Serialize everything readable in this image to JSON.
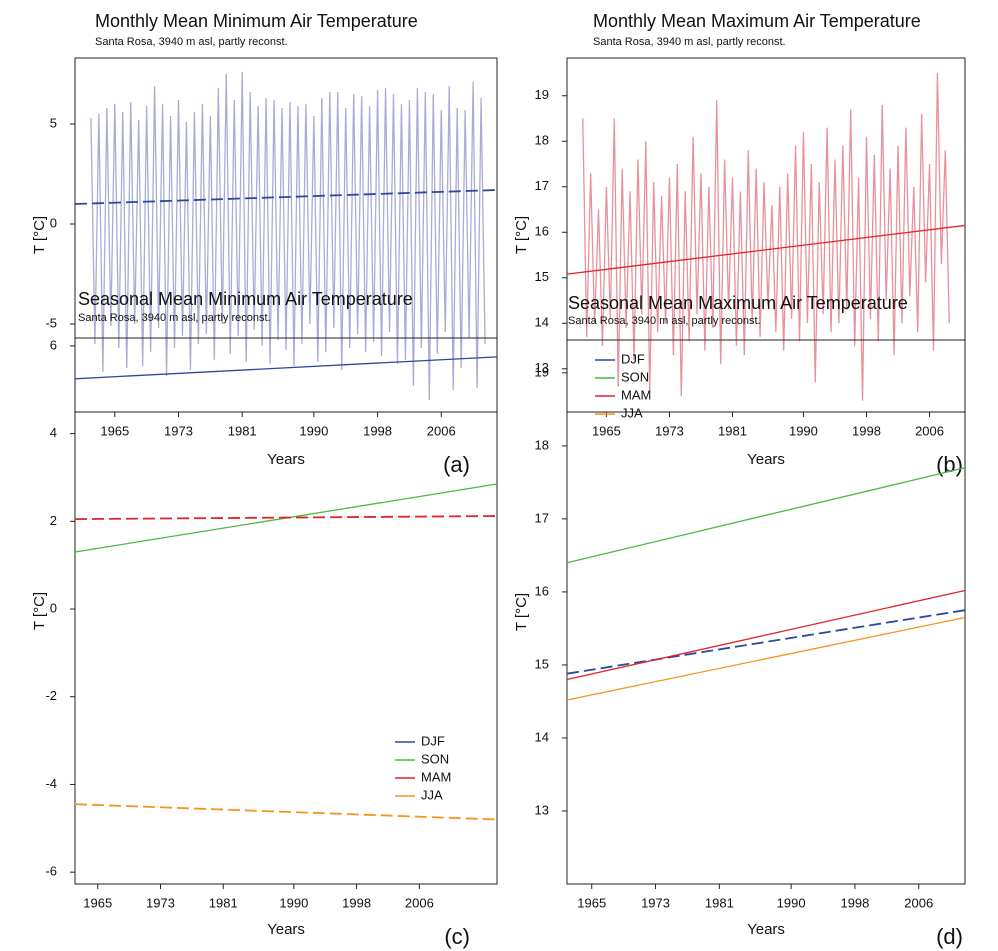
{
  "chart_data": [
    {
      "type": "line",
      "title": "Monthly Mean Minimum Air Temperature",
      "subtitle": "Santa Rosa, 3940 m asl, partly reconst.",
      "xlabel": "Years",
      "ylabel": "T [°C]",
      "panel_label": "(a)",
      "xlim": [
        1960,
        2013
      ],
      "ylim": [
        -9.4,
        8.3
      ],
      "xticks": [
        1965,
        1973,
        1981,
        1990,
        1998,
        2006
      ],
      "yticks": [
        -5,
        0,
        5
      ],
      "x": [
        1962,
        1962.5,
        1963,
        1963.5,
        1964,
        1964.5,
        1965,
        1965.5,
        1966,
        1966.5,
        1967,
        1967.5,
        1968,
        1968.5,
        1969,
        1969.5,
        1970,
        1970.5,
        1971,
        1971.5,
        1972,
        1972.5,
        1973,
        1973.5,
        1974,
        1974.5,
        1975,
        1975.5,
        1976,
        1976.5,
        1977,
        1977.5,
        1978,
        1978.5,
        1979,
        1979.5,
        1980,
        1980.5,
        1981,
        1981.5,
        1982,
        1982.5,
        1983,
        1983.5,
        1984,
        1984.5,
        1985,
        1985.5,
        1986,
        1986.5,
        1987,
        1987.5,
        1988,
        1988.5,
        1989,
        1989.5,
        1990,
        1990.5,
        1991,
        1991.5,
        1992,
        1992.5,
        1993,
        1993.5,
        1994,
        1994.5,
        1995,
        1995.5,
        1996,
        1996.5,
        1997,
        1997.5,
        1998,
        1998.5,
        1999,
        1999.5,
        2000,
        2000.5,
        2001,
        2001.5,
        2002,
        2002.5,
        2003,
        2003.5,
        2004,
        2004.5,
        2005,
        2005.5,
        2006,
        2006.5,
        2007,
        2007.5,
        2008,
        2008.5,
        2009,
        2009.5,
        2010,
        2010.5,
        2011,
        2011.5
      ],
      "series": [
        {
          "color": "#aaabd6",
          "values": [
            5.3,
            -6.0,
            5.5,
            -7.4,
            5.8,
            -5.1,
            6.0,
            -6.2,
            5.6,
            -7.2,
            6.1,
            -5.0,
            5.2,
            -7.1,
            5.9,
            -6.4,
            6.9,
            -5.2,
            6.0,
            -7.6,
            5.4,
            -6.2,
            6.2,
            -5.6,
            5.1,
            -7.3,
            5.6,
            -6.0,
            6.0,
            -5.5,
            5.4,
            -6.8,
            6.8,
            -5.0,
            7.5,
            -6.5,
            6.2,
            -5.6,
            7.6,
            -6.9,
            6.6,
            -5.3,
            5.9,
            -6.1,
            6.3,
            -7.0,
            6.2,
            -5.8,
            5.8,
            -6.3,
            6.1,
            -7.1,
            5.9,
            -6.0,
            6.0,
            -5.0,
            5.4,
            -6.9,
            6.3,
            -6.4,
            6.6,
            -5.2,
            6.6,
            -7.3,
            5.8,
            -6.2,
            6.5,
            -5.5,
            6.4,
            -6.4,
            5.9,
            -5.9,
            6.7,
            -6.6,
            6.8,
            -5.4,
            6.5,
            -7.0,
            6.0,
            -6.8,
            6.2,
            -8.1,
            6.8,
            -6.2,
            6.6,
            -8.8,
            6.5,
            -6.5,
            5.7,
            -5.4,
            6.9,
            -8.3,
            5.8,
            -7.2,
            5.7,
            -5.7,
            7.1,
            -8.2,
            6.3,
            -6.0
          ]
        },
        {
          "color": "#2b4a9a",
          "dashed": true,
          "x": [
            1960,
            2013
          ],
          "values": [
            1.0,
            1.7
          ]
        }
      ]
    },
    {
      "type": "line",
      "title": "Monthly Mean Maximum Air Temperature",
      "subtitle": "Santa Rosa, 3940 m asl, partly reconst.",
      "xlabel": "Years",
      "ylabel": "T [°C]",
      "panel_label": "(b)",
      "xlim": [
        1960,
        2010.5
      ],
      "ylim": [
        12.05,
        19.83
      ],
      "xticks": [
        1965,
        1973,
        1981,
        1990,
        1998,
        2006
      ],
      "yticks": [
        13,
        14,
        15,
        16,
        17,
        18,
        19
      ],
      "x": [
        1962,
        1962.5,
        1963,
        1963.5,
        1964,
        1964.5,
        1965,
        1965.5,
        1966,
        1966.5,
        1967,
        1967.5,
        1968,
        1968.5,
        1969,
        1969.5,
        1970,
        1970.5,
        1971,
        1971.5,
        1972,
        1972.5,
        1973,
        1973.5,
        1974,
        1974.5,
        1975,
        1975.5,
        1976,
        1976.5,
        1977,
        1977.5,
        1978,
        1978.5,
        1979,
        1979.5,
        1980,
        1980.5,
        1981,
        1981.5,
        1982,
        1982.5,
        1983,
        1983.5,
        1984,
        1984.5,
        1985,
        1985.5,
        1986,
        1986.5,
        1987,
        1987.5,
        1988,
        1988.5,
        1989,
        1989.5,
        1990,
        1990.5,
        1991,
        1991.5,
        1992,
        1992.5,
        1993,
        1993.5,
        1994,
        1994.5,
        1995,
        1995.5,
        1996,
        1996.5,
        1997,
        1997.5,
        1998,
        1998.5,
        1999,
        1999.5,
        2000,
        2000.5,
        2001,
        2001.5,
        2002,
        2002.5,
        2003,
        2003.5,
        2004,
        2004.5,
        2005,
        2005.5,
        2006,
        2006.5,
        2007,
        2007.5,
        2008,
        2008.5
      ],
      "series": [
        {
          "color": "#e8919d",
          "values": [
            18.5,
            13.7,
            17.3,
            14.0,
            16.5,
            13.5,
            17.0,
            14.1,
            18.5,
            12.6,
            17.4,
            13.9,
            16.9,
            13.2,
            17.6,
            14.2,
            18.0,
            12.5,
            17.1,
            13.8,
            16.8,
            14.0,
            17.2,
            13.3,
            17.5,
            12.4,
            16.9,
            13.6,
            18.1,
            14.2,
            17.3,
            13.4,
            17.0,
            13.9,
            18.9,
            13.1,
            17.6,
            14.3,
            17.2,
            13.5,
            16.9,
            13.3,
            17.8,
            14.0,
            17.4,
            13.7,
            17.1,
            14.4,
            16.6,
            13.8,
            17.0,
            13.4,
            17.3,
            14.1,
            17.9,
            13.6,
            18.2,
            14.0,
            17.5,
            12.7,
            17.1,
            14.2,
            18.3,
            13.8,
            17.6,
            14.0,
            17.9,
            14.3,
            18.7,
            13.5,
            17.2,
            12.3,
            18.1,
            14.1,
            17.7,
            13.6,
            18.8,
            14.5,
            17.4,
            13.3,
            17.9,
            14.0,
            18.3,
            14.6,
            17.0,
            13.8,
            18.6,
            14.9,
            17.5,
            13.4,
            19.5,
            15.3,
            17.8,
            14.0
          ]
        },
        {
          "color": "#e0242a",
          "x": [
            1960,
            2010.5
          ],
          "values": [
            15.08,
            16.15
          ]
        }
      ]
    },
    {
      "type": "line",
      "title": "Seasonal Mean Minimum Air Temperature",
      "subtitle": "Santa Rosa, 3940 m asl, partly reconst.",
      "xlabel": "Years",
      "ylabel": "T [°C]",
      "panel_label": "(c)",
      "xlim": [
        1962.1,
        2015.9
      ],
      "ylim": [
        -6.27,
        6.18
      ],
      "xticks": [
        1965,
        1973,
        1981,
        1990,
        1998,
        2006
      ],
      "yticks": [
        -6,
        -4,
        -2,
        0,
        2,
        4,
        6
      ],
      "legend": "lower right",
      "x": [
        1962.1,
        2015.9
      ],
      "series": [
        {
          "name": "DJF",
          "color": "#2b4a9a",
          "values": [
            5.25,
            5.75
          ]
        },
        {
          "name": "SON",
          "color": "#4cb848",
          "values": [
            1.3,
            2.85
          ]
        },
        {
          "name": "MAM",
          "color": "#e0242a",
          "dashed": true,
          "values": [
            2.05,
            2.12
          ]
        },
        {
          "name": "JJA",
          "color": "#f7941d",
          "dashed": true,
          "values": [
            -4.45,
            -4.8
          ]
        }
      ]
    },
    {
      "type": "line",
      "title": "Seasonal Mean Maximum Air Temperature",
      "subtitle": "Santa Rosa, 3940 m asl, partly reconst.",
      "xlabel": "Years",
      "ylabel": "T [°C]",
      "panel_label": "(d)",
      "xlim": [
        1961.9,
        2011.8
      ],
      "ylim": [
        12.0,
        19.45
      ],
      "xticks": [
        1965,
        1973,
        1981,
        1990,
        1998,
        2006
      ],
      "yticks": [
        13,
        14,
        15,
        16,
        17,
        18,
        19
      ],
      "legend": "upper left",
      "x": [
        1961.9,
        2011.8
      ],
      "series": [
        {
          "name": "DJF",
          "color": "#2b4a9a",
          "dashed": true,
          "values": [
            14.88,
            15.75
          ]
        },
        {
          "name": "SON",
          "color": "#4cb848",
          "values": [
            16.4,
            17.7
          ]
        },
        {
          "name": "MAM",
          "color": "#e0242a",
          "values": [
            14.8,
            16.02
          ]
        },
        {
          "name": "JJA",
          "color": "#f7941d",
          "values": [
            14.52,
            15.65
          ]
        }
      ]
    }
  ]
}
